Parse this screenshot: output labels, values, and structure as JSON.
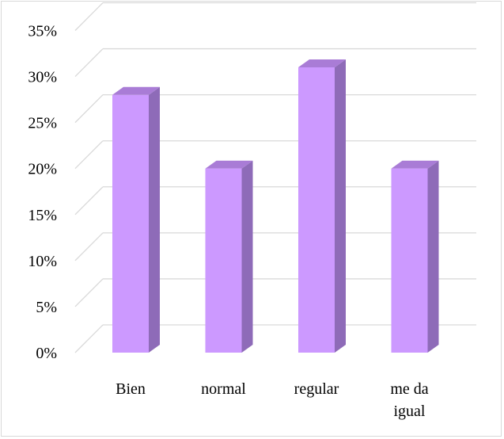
{
  "chart_data": {
    "type": "bar",
    "style": "3d-column",
    "categories": [
      [
        "Bien"
      ],
      [
        "normal"
      ],
      [
        "regular"
      ],
      [
        "me da",
        "igual"
      ]
    ],
    "values": [
      0.28,
      0.2,
      0.31,
      0.2
    ],
    "ylim": [
      0,
      0.35
    ],
    "yticks": [
      "0%",
      "5%",
      "10%",
      "15%",
      "20%",
      "25%",
      "30%",
      "35%"
    ],
    "grid": true,
    "legend": "none",
    "colors": {
      "front": "#cc99ff",
      "side": "#8e6bb8",
      "top": "#a97cd6",
      "grid": "#d9d9d9"
    }
  }
}
